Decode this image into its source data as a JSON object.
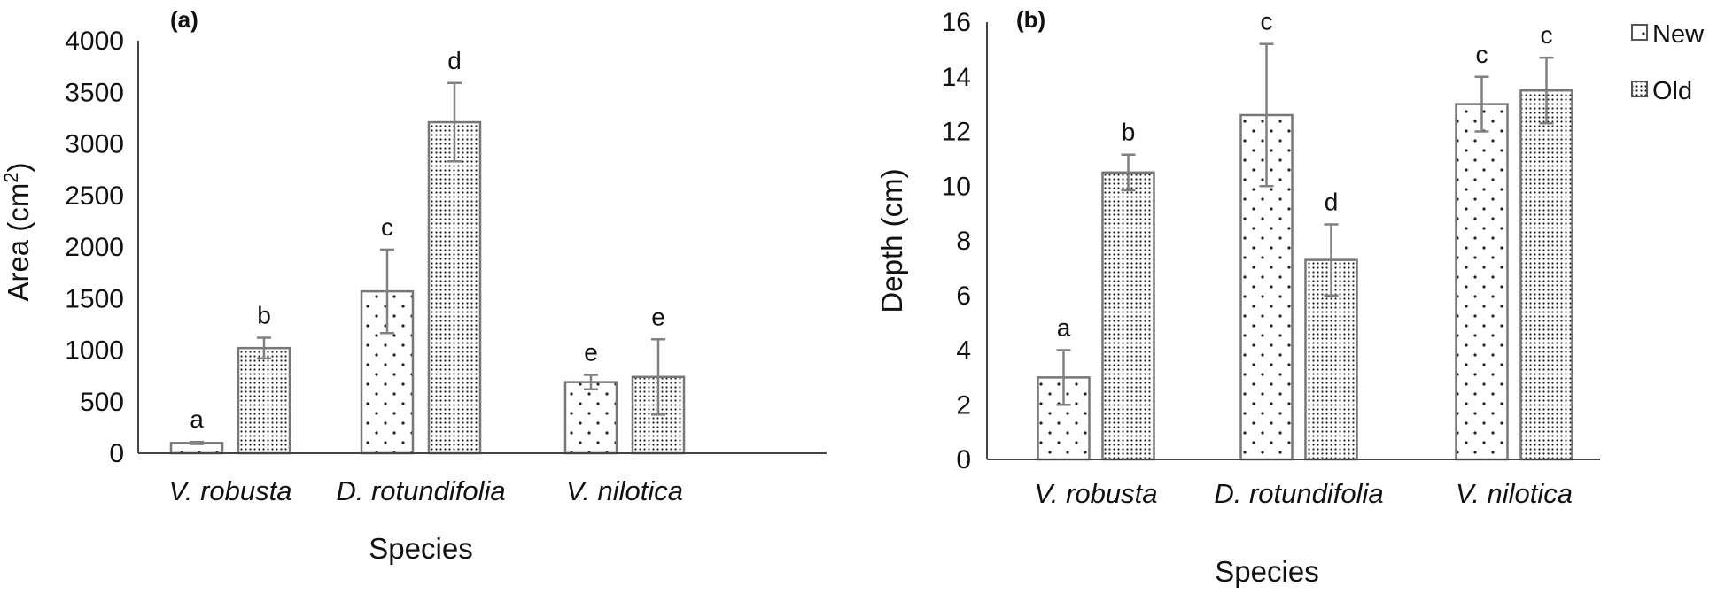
{
  "chart_data": [
    {
      "type": "bar",
      "panel_label": "(a)",
      "categories": [
        "V. robusta",
        "D. rotundifolia",
        "V. nilotica"
      ],
      "xlabel": "Species",
      "ylabel": "Area (cm",
      "ylabel_sup": "2",
      "ylabel_end": ")",
      "ylim": [
        0,
        4000
      ],
      "yticks": [
        0,
        500,
        1000,
        1500,
        2000,
        2500,
        3000,
        3500,
        4000
      ],
      "series": [
        {
          "name": "New",
          "values": [
            100,
            1570,
            690
          ],
          "errors": [
            10,
            405,
            70
          ],
          "sig": [
            "a",
            "c",
            "e"
          ]
        },
        {
          "name": "Old",
          "values": [
            1020,
            3210,
            740
          ],
          "errors": [
            100,
            380,
            365
          ],
          "sig": [
            "b",
            "d",
            "e"
          ]
        }
      ]
    },
    {
      "type": "bar",
      "panel_label": "(b)",
      "categories": [
        "V. robusta",
        "D. rotundifolia",
        "V. nilotica"
      ],
      "xlabel": "Species",
      "ylabel": "Depth (cm)",
      "ylim": [
        0,
        16
      ],
      "yticks": [
        0,
        2,
        4,
        6,
        8,
        10,
        12,
        14,
        16
      ],
      "series": [
        {
          "name": "New",
          "values": [
            3,
            12.6,
            13
          ],
          "errors": [
            1,
            2.6,
            1
          ],
          "sig": [
            "a",
            "c",
            "c"
          ]
        },
        {
          "name": "Old",
          "values": [
            10.5,
            7.3,
            13.5
          ],
          "errors": [
            0.65,
            1.3,
            1.2
          ],
          "sig": [
            "b",
            "d",
            "c"
          ]
        }
      ]
    }
  ],
  "legend": {
    "placement": "top-right",
    "items": [
      {
        "label": "New"
      },
      {
        "label": "Old"
      }
    ]
  }
}
